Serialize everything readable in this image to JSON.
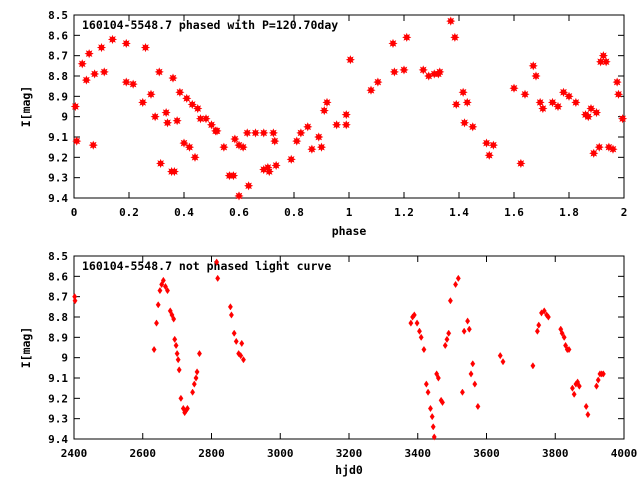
{
  "colors": {
    "marker": "#ff0000",
    "axis": "#000000",
    "background": "#ffffff"
  },
  "chart_data": [
    {
      "type": "scatter",
      "title": "160104-5548.7 phased with P=120.70day",
      "xlabel": "phase",
      "ylabel": "I[mag]",
      "xlim": [
        0,
        2
      ],
      "ylim": [
        8.5,
        9.4
      ],
      "y_inverted": true,
      "grid": false,
      "legend": "none",
      "marker_style": "star",
      "xticks": [
        "0",
        "0.2",
        "0.4",
        "0.6",
        "0.8",
        "1",
        "1.2",
        "1.4",
        "1.6",
        "1.8",
        "2"
      ],
      "yticks": [
        "8.5",
        "8.6",
        "8.7",
        "8.8",
        "8.9",
        "9",
        "9.1",
        "9.2",
        "9.3",
        "9.4"
      ],
      "points": [
        [
          0.005,
          8.95
        ],
        [
          0.01,
          9.12
        ],
        [
          0.03,
          8.74
        ],
        [
          0.045,
          8.82
        ],
        [
          0.055,
          8.69
        ],
        [
          0.07,
          9.14
        ],
        [
          0.075,
          8.79
        ],
        [
          0.1,
          8.66
        ],
        [
          0.11,
          8.78
        ],
        [
          0.14,
          8.62
        ],
        [
          0.19,
          8.64
        ],
        [
          0.19,
          8.83
        ],
        [
          0.215,
          8.84
        ],
        [
          0.25,
          8.93
        ],
        [
          0.26,
          8.66
        ],
        [
          0.28,
          8.89
        ],
        [
          0.295,
          9.0
        ],
        [
          0.31,
          8.78
        ],
        [
          0.315,
          9.23
        ],
        [
          0.335,
          8.98
        ],
        [
          0.34,
          9.03
        ],
        [
          0.355,
          9.27
        ],
        [
          0.36,
          8.81
        ],
        [
          0.365,
          9.27
        ],
        [
          0.375,
          9.02
        ],
        [
          0.385,
          8.88
        ],
        [
          0.4,
          9.13
        ],
        [
          0.41,
          8.91
        ],
        [
          0.42,
          9.15
        ],
        [
          0.43,
          8.94
        ],
        [
          0.44,
          9.2
        ],
        [
          0.45,
          8.96
        ],
        [
          0.46,
          9.01
        ],
        [
          0.48,
          9.01
        ],
        [
          0.5,
          9.04
        ],
        [
          0.515,
          9.07
        ],
        [
          0.52,
          9.07
        ],
        [
          0.545,
          9.15
        ],
        [
          0.565,
          9.29
        ],
        [
          0.58,
          9.29
        ],
        [
          0.585,
          9.11
        ],
        [
          0.6,
          9.14
        ],
        [
          0.6,
          9.39
        ],
        [
          0.615,
          9.15
        ],
        [
          0.63,
          9.08
        ],
        [
          0.635,
          9.34
        ],
        [
          0.66,
          9.08
        ],
        [
          0.69,
          9.08
        ],
        [
          0.69,
          9.26
        ],
        [
          0.705,
          9.25
        ],
        [
          0.71,
          9.27
        ],
        [
          0.725,
          9.08
        ],
        [
          0.73,
          9.12
        ],
        [
          0.735,
          9.24
        ],
        [
          0.79,
          9.21
        ],
        [
          0.81,
          9.12
        ],
        [
          0.825,
          9.08
        ],
        [
          0.85,
          9.05
        ],
        [
          0.865,
          9.16
        ],
        [
          0.89,
          9.1
        ],
        [
          0.9,
          9.15
        ],
        [
          0.91,
          8.97
        ],
        [
          0.92,
          8.93
        ],
        [
          0.955,
          9.04
        ],
        [
          0.99,
          9.04
        ],
        [
          0.99,
          8.99
        ],
        [
          1.005,
          8.72
        ],
        [
          1.08,
          8.87
        ],
        [
          1.105,
          8.83
        ],
        [
          1.16,
          8.64
        ],
        [
          1.165,
          8.78
        ],
        [
          1.2,
          8.77
        ],
        [
          1.21,
          8.61
        ],
        [
          1.27,
          8.77
        ],
        [
          1.29,
          8.8
        ],
        [
          1.31,
          8.79
        ],
        [
          1.325,
          8.79
        ],
        [
          1.33,
          8.78
        ],
        [
          1.37,
          8.53
        ],
        [
          1.385,
          8.61
        ],
        [
          1.39,
          8.94
        ],
        [
          1.415,
          8.88
        ],
        [
          1.42,
          9.03
        ],
        [
          1.43,
          8.93
        ],
        [
          1.45,
          9.05
        ],
        [
          1.5,
          9.13
        ],
        [
          1.51,
          9.19
        ],
        [
          1.525,
          9.14
        ],
        [
          1.6,
          8.86
        ],
        [
          1.625,
          9.23
        ],
        [
          1.64,
          8.89
        ],
        [
          1.67,
          8.75
        ],
        [
          1.68,
          8.8
        ],
        [
          1.695,
          8.93
        ],
        [
          1.705,
          8.96
        ],
        [
          1.74,
          8.93
        ],
        [
          1.76,
          8.95
        ],
        [
          1.78,
          8.88
        ],
        [
          1.8,
          8.9
        ],
        [
          1.825,
          8.93
        ],
        [
          1.86,
          8.99
        ],
        [
          1.87,
          9.0
        ],
        [
          1.88,
          8.96
        ],
        [
          1.89,
          9.18
        ],
        [
          1.9,
          8.98
        ],
        [
          1.91,
          9.15
        ],
        [
          1.915,
          8.73
        ],
        [
          1.925,
          8.7
        ],
        [
          1.935,
          8.73
        ],
        [
          1.945,
          9.15
        ],
        [
          1.96,
          9.16
        ],
        [
          1.975,
          8.83
        ],
        [
          1.98,
          8.89
        ],
        [
          1.995,
          9.01
        ]
      ]
    },
    {
      "type": "scatter",
      "title": "160104-5548.7 not phased light curve",
      "xlabel": "hjd0",
      "ylabel": "I[mag]",
      "xlim": [
        2400,
        4000
      ],
      "ylim": [
        8.5,
        9.4
      ],
      "y_inverted": true,
      "grid": false,
      "legend": "none",
      "marker_style": "diamond",
      "xticks": [
        "2400",
        "2600",
        "2800",
        "3000",
        "3200",
        "3400",
        "3600",
        "3800",
        "4000"
      ],
      "yticks": [
        "8.5",
        "8.6",
        "8.7",
        "8.8",
        "8.9",
        "9",
        "9.1",
        "9.2",
        "9.3",
        "9.4"
      ],
      "points": [
        [
          2402,
          8.7
        ],
        [
          2403,
          8.72
        ],
        [
          2633,
          8.96
        ],
        [
          2640,
          8.83
        ],
        [
          2645,
          8.74
        ],
        [
          2650,
          8.67
        ],
        [
          2655,
          8.64
        ],
        [
          2660,
          8.62
        ],
        [
          2666,
          8.65
        ],
        [
          2672,
          8.67
        ],
        [
          2680,
          8.77
        ],
        [
          2685,
          8.79
        ],
        [
          2690,
          8.81
        ],
        [
          2693,
          8.91
        ],
        [
          2697,
          8.94
        ],
        [
          2700,
          8.98
        ],
        [
          2703,
          9.01
        ],
        [
          2706,
          9.06
        ],
        [
          2711,
          9.2
        ],
        [
          2718,
          9.25
        ],
        [
          2722,
          9.27
        ],
        [
          2726,
          9.26
        ],
        [
          2730,
          9.25
        ],
        [
          2745,
          9.17
        ],
        [
          2750,
          9.13
        ],
        [
          2755,
          9.1
        ],
        [
          2758,
          9.07
        ],
        [
          2765,
          8.98
        ],
        [
          2815,
          8.53
        ],
        [
          2818,
          8.61
        ],
        [
          2855,
          8.75
        ],
        [
          2858,
          8.79
        ],
        [
          2866,
          8.88
        ],
        [
          2872,
          8.92
        ],
        [
          2879,
          8.98
        ],
        [
          2885,
          8.99
        ],
        [
          2888,
          8.93
        ],
        [
          2893,
          9.01
        ],
        [
          3380,
          8.83
        ],
        [
          3385,
          8.8
        ],
        [
          3390,
          8.79
        ],
        [
          3398,
          8.83
        ],
        [
          3405,
          8.87
        ],
        [
          3410,
          8.9
        ],
        [
          3418,
          8.96
        ],
        [
          3425,
          9.13
        ],
        [
          3430,
          9.17
        ],
        [
          3437,
          9.25
        ],
        [
          3442,
          9.29
        ],
        [
          3445,
          9.34
        ],
        [
          3448,
          9.39
        ],
        [
          3455,
          9.08
        ],
        [
          3460,
          9.1
        ],
        [
          3468,
          9.21
        ],
        [
          3472,
          9.22
        ],
        [
          3480,
          8.94
        ],
        [
          3485,
          8.91
        ],
        [
          3490,
          8.88
        ],
        [
          3495,
          8.72
        ],
        [
          3510,
          8.64
        ],
        [
          3518,
          8.61
        ],
        [
          3530,
          9.17
        ],
        [
          3535,
          8.87
        ],
        [
          3545,
          8.82
        ],
        [
          3550,
          8.86
        ],
        [
          3555,
          9.08
        ],
        [
          3560,
          9.03
        ],
        [
          3566,
          9.13
        ],
        [
          3575,
          9.24
        ],
        [
          3640,
          8.99
        ],
        [
          3648,
          9.02
        ],
        [
          3735,
          9.04
        ],
        [
          3748,
          8.87
        ],
        [
          3752,
          8.84
        ],
        [
          3760,
          8.78
        ],
        [
          3768,
          8.77
        ],
        [
          3775,
          8.79
        ],
        [
          3780,
          8.8
        ],
        [
          3816,
          8.86
        ],
        [
          3820,
          8.88
        ],
        [
          3826,
          8.9
        ],
        [
          3830,
          8.94
        ],
        [
          3835,
          8.96
        ],
        [
          3840,
          8.96
        ],
        [
          3850,
          9.15
        ],
        [
          3855,
          9.18
        ],
        [
          3860,
          9.13
        ],
        [
          3865,
          9.12
        ],
        [
          3870,
          9.14
        ],
        [
          3890,
          9.24
        ],
        [
          3895,
          9.28
        ],
        [
          3920,
          9.14
        ],
        [
          3925,
          9.11
        ],
        [
          3930,
          9.08
        ],
        [
          3935,
          9.08
        ],
        [
          3940,
          9.08
        ]
      ]
    }
  ]
}
